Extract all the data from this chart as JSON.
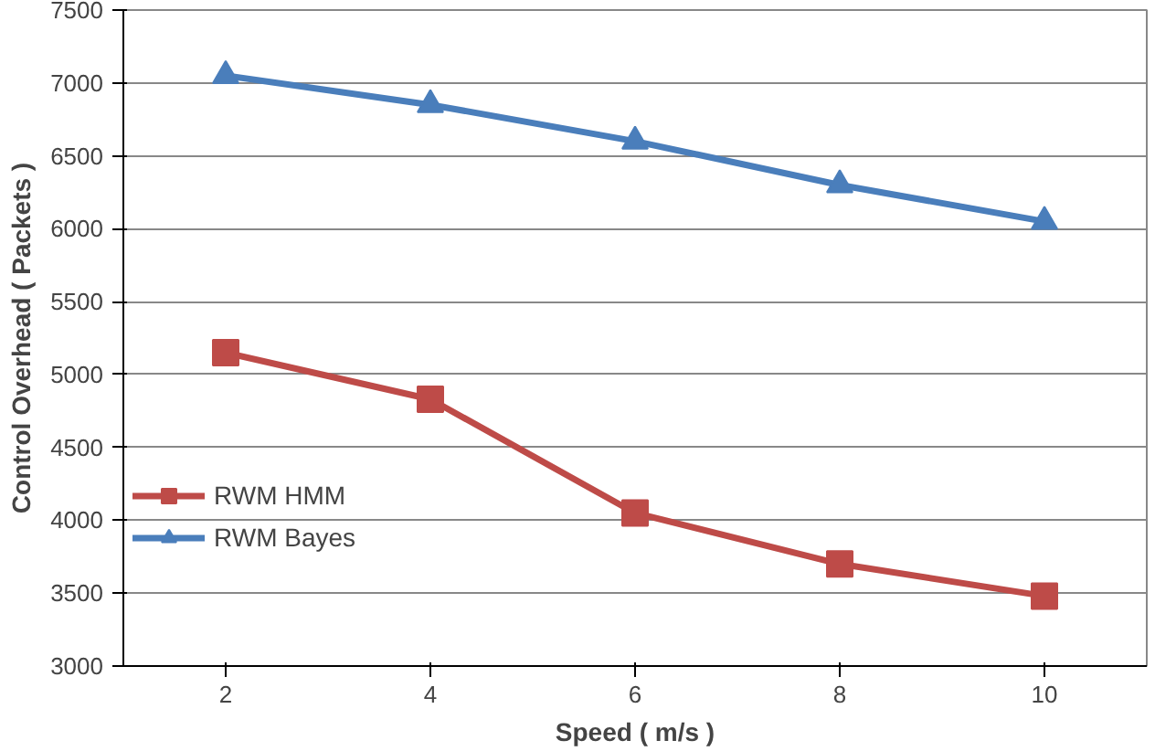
{
  "chart_data": {
    "type": "line",
    "xlabel": "Speed ( m/s )",
    "ylabel": "Control Overhead ( Packets )",
    "categories": [
      "2",
      "4",
      "6",
      "8",
      "10"
    ],
    "series": [
      {
        "name": "RWM HMM",
        "color": "#be4b48",
        "marker": "square",
        "values": [
          5150,
          4830,
          4050,
          3700,
          3480
        ]
      },
      {
        "name": "RWM Bayes",
        "color": "#4a7ebb",
        "marker": "triangle",
        "values": [
          7050,
          6850,
          6600,
          6300,
          6050
        ]
      }
    ],
    "ylim": [
      3000,
      7500
    ],
    "yticks": [
      3000,
      3500,
      4000,
      4500,
      5000,
      5500,
      6000,
      6500,
      7000,
      7500
    ],
    "grid": "y",
    "legend": "left",
    "line_style": "solid"
  }
}
